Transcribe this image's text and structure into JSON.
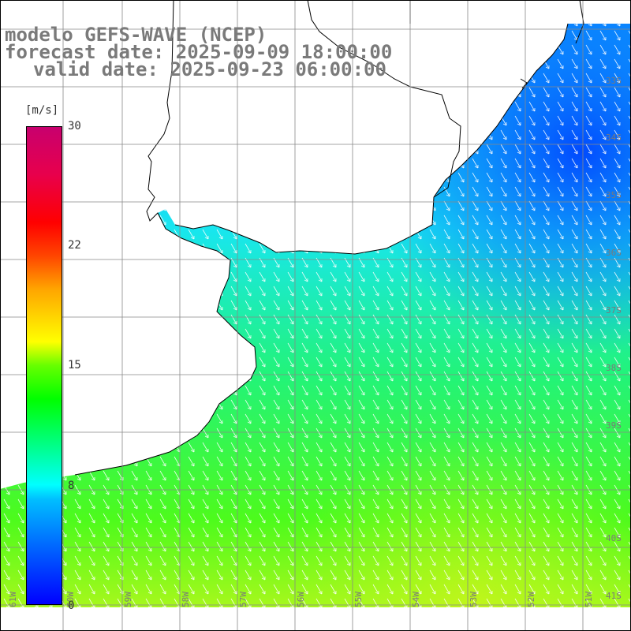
{
  "title": {
    "model": "modelo GEFS-WAVE (NCEP)",
    "forecast": "forecast date: 2025-09-09 18:00:00",
    "valid": "valid date: 2025-09-23 06:00:00"
  },
  "colorbar": {
    "unit": "[m/s]",
    "ticks": [
      "30",
      "22",
      "15",
      "8",
      "0"
    ],
    "colors": [
      "#0000ff",
      "#00bfff",
      "#00ffff",
      "#00ff00",
      "#ffff00",
      "#ff4500",
      "#ff0000",
      "#c8006e"
    ]
  },
  "map": {
    "lat_labels": [
      "33S",
      "34S",
      "35S",
      "36S",
      "37S",
      "38S",
      "39S",
      "40S",
      "41S"
    ],
    "lon_labels": [
      "61W",
      "60W",
      "59W",
      "58W",
      "57W",
      "56W",
      "55W",
      "54W",
      "53W",
      "52W",
      "51W"
    ],
    "variable": "wind speed with direction arrows",
    "land_color": "#ffffff",
    "grid_color": "#888888"
  }
}
